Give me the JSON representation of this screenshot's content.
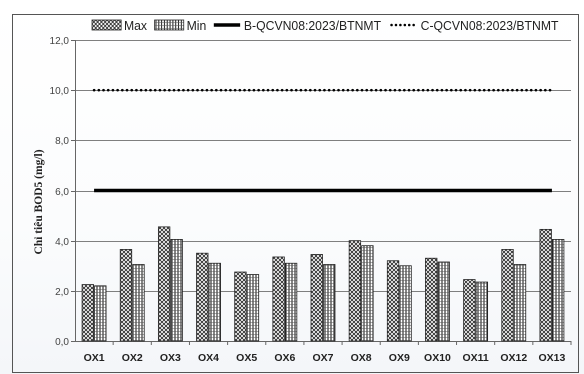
{
  "chart_data": {
    "type": "bar",
    "ylabel": "Chỉ tiêu BOD5 (mg/l)",
    "ylim": [
      0,
      12
    ],
    "yticks": [
      "0,0",
      "2,0",
      "4,0",
      "6,0",
      "8,0",
      "10,0",
      "12,0"
    ],
    "grid": true,
    "legend_position": "top",
    "categories": [
      "OX1",
      "OX2",
      "OX3",
      "OX4",
      "OX5",
      "OX6",
      "OX7",
      "OX8",
      "OX9",
      "OX10",
      "OX11",
      "OX12",
      "OX13"
    ],
    "series": [
      {
        "name": "Max",
        "pattern": "diagonal-cross",
        "values": [
          2.25,
          3.65,
          4.55,
          3.5,
          2.75,
          3.35,
          3.45,
          4.0,
          3.2,
          3.3,
          2.45,
          3.65,
          4.45
        ]
      },
      {
        "name": "Min",
        "pattern": "vertical-lines",
        "values": [
          2.2,
          3.05,
          4.05,
          3.1,
          2.65,
          3.1,
          3.05,
          3.8,
          3.0,
          3.15,
          2.35,
          3.05,
          4.05
        ]
      }
    ],
    "reference_lines": [
      {
        "name": "B-QCVN08:2023/BTNMT",
        "value": 6.0,
        "style": "solid-thick",
        "color": "#000000"
      },
      {
        "name": "C-QCVN08:2023/BTNMT",
        "value": 10.0,
        "style": "dotted",
        "color": "#000000"
      }
    ]
  }
}
